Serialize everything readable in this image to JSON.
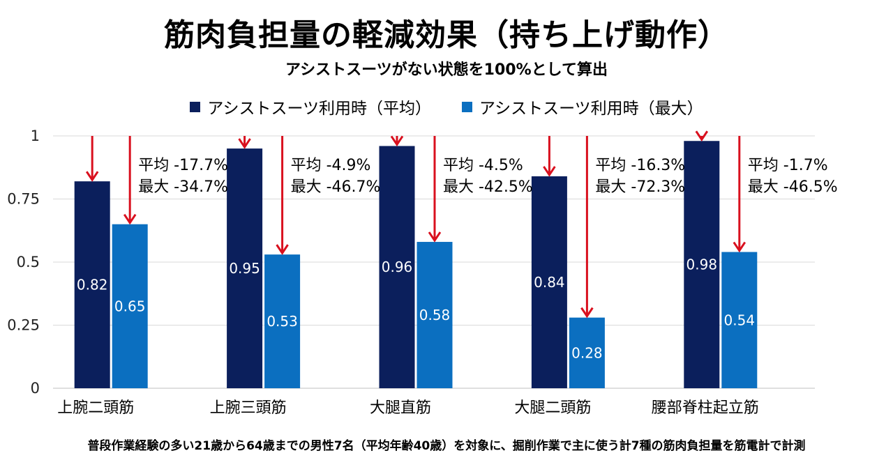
{
  "title": "筋肉負担量の軽減効果（持ち上げ動作）",
  "subtitle": "アシストスーツがない状態を100%として算出",
  "footnote": "普段作業経験の多い21歳から64歳までの男性7名（平均年齢40歳）を対象に、掘削作業で主に使う計7種の筋肉負担量を筋電計で計測",
  "colors": {
    "avg": "#0b1f5c",
    "max": "#0b6fc0",
    "arrow": "#d9101e",
    "grid": "#d9d9d9"
  },
  "chart_data": {
    "type": "bar",
    "categories": [
      "上腕二頭筋",
      "上腕三頭筋",
      "大腿直筋",
      "大腿二頭筋",
      "腰部脊柱起立筋"
    ],
    "series": [
      {
        "name": "アシストスーツ利用時（平均）",
        "values": [
          0.82,
          0.95,
          0.96,
          0.84,
          0.98
        ]
      },
      {
        "name": "アシストスーツ利用時（最大）",
        "values": [
          0.65,
          0.53,
          0.58,
          0.28,
          0.54
        ]
      }
    ],
    "value_labels": {
      "avg": [
        "0.82",
        "0.95",
        "0.96",
        "0.84",
        "0.98"
      ],
      "max": [
        "0.65",
        "0.53",
        "0.58",
        "0.28",
        "0.54"
      ]
    },
    "annotations": [
      {
        "avg": "平均 -17.7%",
        "max": "最大 -34.7%"
      },
      {
        "avg": "平均 -4.9%",
        "max": "最大 -46.7%"
      },
      {
        "avg": "平均 -4.5%",
        "max": "最大 -42.5%"
      },
      {
        "avg": "平均 -16.3%",
        "max": "最大 -72.3%"
      },
      {
        "avg": "平均 -1.7%",
        "max": "最大 -46.5%"
      }
    ],
    "yticks": [
      {
        "value": 0,
        "label": "0"
      },
      {
        "value": 0.25,
        "label": "0.25"
      },
      {
        "value": 0.5,
        "label": "0.5"
      },
      {
        "value": 0.75,
        "label": "0.75"
      },
      {
        "value": 1,
        "label": "1"
      }
    ],
    "ylim": [
      0,
      1
    ],
    "grid": true,
    "legend_position": "top-center"
  }
}
